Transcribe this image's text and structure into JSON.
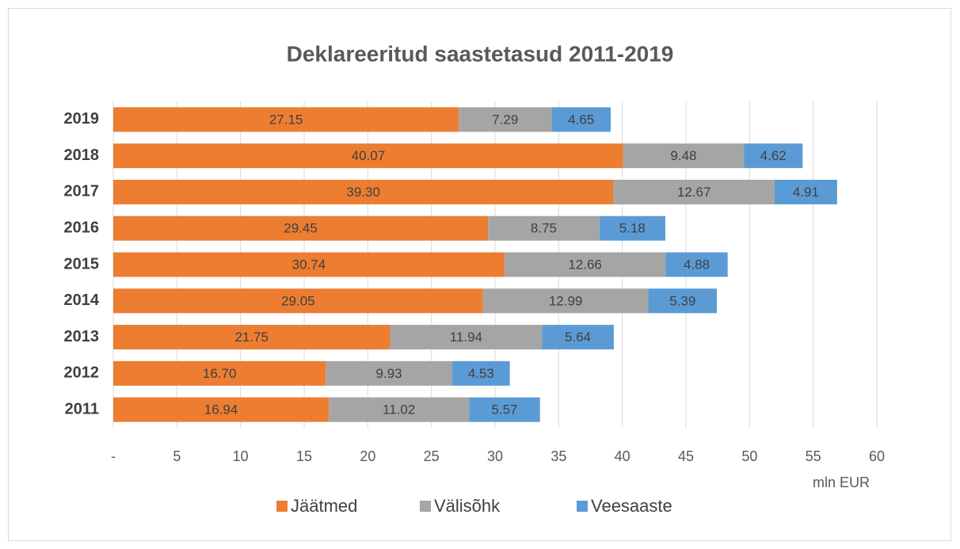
{
  "chart_data": {
    "type": "stacked-barh",
    "title": "Deklareeritud saastetasud 2011-2019",
    "x_label": "mln EUR",
    "categories": [
      "2019",
      "2018",
      "2017",
      "2016",
      "2015",
      "2014",
      "2013",
      "2012",
      "2011"
    ],
    "series": [
      {
        "name": "Jäätmed",
        "color": "#ED7D31",
        "values": [
          27.15,
          40.07,
          39.3,
          29.45,
          30.74,
          29.05,
          21.75,
          16.7,
          16.94
        ],
        "value_labels": [
          "27.15",
          "40.07",
          "39.30",
          "29.45",
          "30.74",
          "29.05",
          "21.75",
          "16.70",
          "16.94"
        ]
      },
      {
        "name": "Välisõhk",
        "color": "#A5A5A5",
        "values": [
          7.29,
          9.48,
          12.67,
          8.75,
          12.66,
          12.99,
          11.94,
          9.93,
          11.02
        ],
        "value_labels": [
          "7.29",
          "9.48",
          "12.67",
          "8.75",
          "12.66",
          "12.99",
          "11.94",
          "9.93",
          "11.02"
        ]
      },
      {
        "name": "Veesaaste",
        "color": "#5B9BD5",
        "values": [
          4.65,
          4.62,
          4.91,
          5.18,
          4.88,
          5.39,
          5.64,
          4.53,
          5.57
        ],
        "value_labels": [
          "4.65",
          "4.62",
          "4.91",
          "5.18",
          "4.88",
          "5.39",
          "5.64",
          "4.53",
          "5.57"
        ]
      }
    ],
    "xlim": [
      0,
      60
    ],
    "xticks": [
      {
        "value": 0,
        "label": "-"
      },
      5,
      10,
      15,
      20,
      25,
      30,
      35,
      40,
      45,
      50,
      55,
      60
    ],
    "grid": true,
    "legend": "bottom"
  }
}
